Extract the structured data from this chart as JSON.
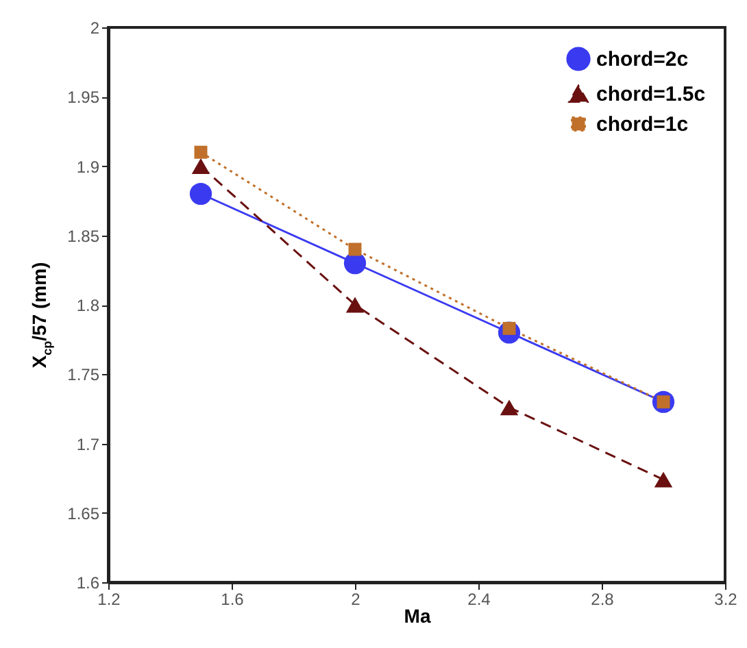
{
  "chart_data": {
    "type": "line",
    "xlabel": "Ma",
    "ylabel": "X$_{cp}$/57 (mm)",
    "x": [
      1.5,
      2,
      2.5,
      3
    ],
    "series": [
      {
        "name": "chord=2c",
        "color": "#3a3af0",
        "marker": "circle",
        "line_style": "solid",
        "values": [
          1.88,
          1.83,
          1.78,
          1.73
        ]
      },
      {
        "name": "chord=1.5c",
        "color": "#6a1010",
        "marker": "triangle",
        "line_style": "dashed",
        "values": [
          1.9,
          1.8,
          1.726,
          1.674
        ]
      },
      {
        "name": "chord=1c",
        "color": "#c0702a",
        "marker": "square",
        "line_style": "dotted",
        "values": [
          1.91,
          1.84,
          1.783,
          1.73
        ]
      }
    ],
    "xlim": [
      1.2,
      3.2
    ],
    "xticks": [
      1.2,
      1.6,
      2,
      2.4,
      2.8,
      3.2
    ],
    "ylim": [
      1.6,
      2
    ],
    "yticks": [
      1.6,
      1.65,
      1.7,
      1.75,
      1.8,
      1.85,
      1.9,
      1.95,
      2
    ],
    "grid": false,
    "legend": "top right"
  }
}
